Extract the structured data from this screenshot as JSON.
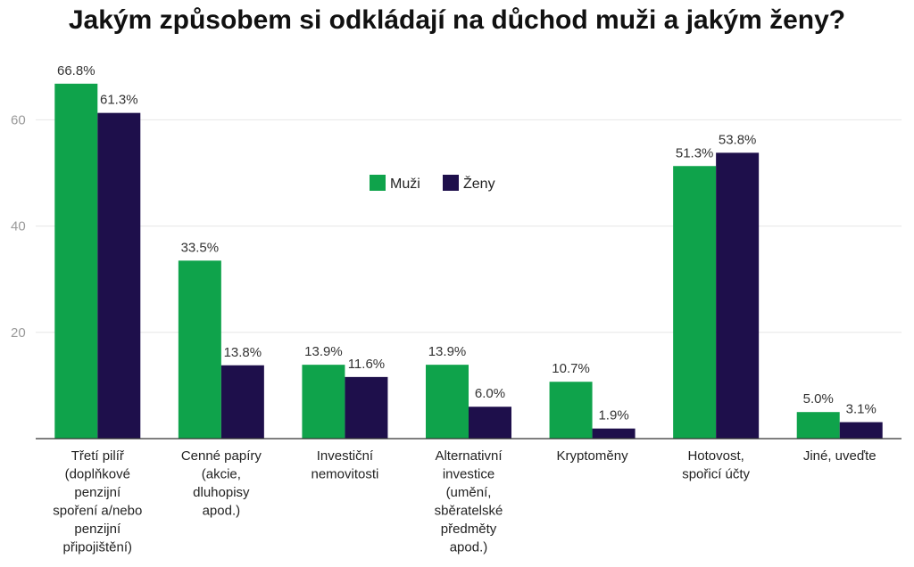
{
  "chart_data": {
    "type": "bar",
    "title": "Jakým způsobem si odkládají na důchod muži a jakým ženy?",
    "categories": [
      [
        "Třetí pilíř",
        "(doplňkové",
        "penzijní",
        "spoření a/nebo",
        "penzijní",
        "připojištění)"
      ],
      [
        "Cenné papíry",
        "(akcie,",
        "dluhopisy",
        "apod.)"
      ],
      [
        "Investiční",
        "nemovitosti"
      ],
      [
        "Alternativní",
        "investice",
        "(umění,",
        "sběratelské",
        "předměty",
        "apod.)"
      ],
      [
        "Kryptoměny"
      ],
      [
        "Hotovost,",
        "spořicí účty"
      ],
      [
        "Jiné, uveďte"
      ]
    ],
    "series": [
      {
        "name": "Muži",
        "color": "#0fa34b",
        "values": [
          66.8,
          33.5,
          13.9,
          13.9,
          10.7,
          51.3,
          5.0
        ],
        "labels": [
          "66.8%",
          "33.5%",
          "13.9%",
          "13.9%",
          "10.7%",
          "51.3%",
          "5.0%"
        ]
      },
      {
        "name": "Ženy",
        "color": "#1e0f4b",
        "values": [
          61.3,
          13.8,
          11.6,
          6.0,
          1.9,
          53.8,
          3.1
        ],
        "labels": [
          "61.3%",
          "13.8%",
          "11.6%",
          "6.0%",
          "1.9%",
          "53.8%",
          "3.1%"
        ]
      }
    ],
    "yticks": [
      "20",
      "40",
      "60"
    ],
    "ylim": [
      0,
      70
    ],
    "grid": true,
    "legend_position": "center"
  }
}
